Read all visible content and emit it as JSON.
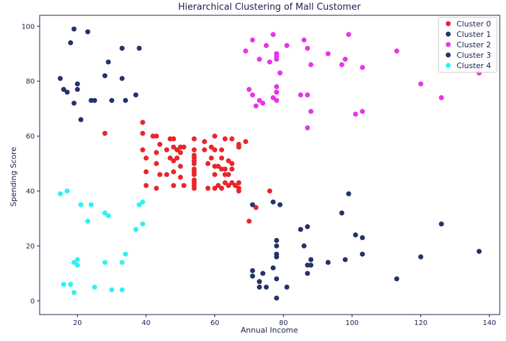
{
  "chart_data": {
    "type": "scatter",
    "title": "Hierarchical Clustering of Mall Customer",
    "xlabel": "Annual Income",
    "ylabel": "Spending Score",
    "xlim": [
      9,
      143
    ],
    "ylim": [
      -5,
      104
    ],
    "xticks": [
      20,
      40,
      60,
      80,
      100,
      120,
      140
    ],
    "yticks": [
      0,
      20,
      40,
      60,
      80,
      100
    ],
    "grid": false,
    "legend_position": "top-right",
    "series": [
      {
        "name": "Cluster 0",
        "color": "#e8262b",
        "points": [
          [
            28,
            61
          ],
          [
            39,
            65
          ],
          [
            39,
            61
          ],
          [
            39,
            55
          ],
          [
            40,
            47
          ],
          [
            40,
            42
          ],
          [
            40,
            52
          ],
          [
            42,
            60
          ],
          [
            43,
            60
          ],
          [
            43,
            54
          ],
          [
            43,
            41
          ],
          [
            43,
            50
          ],
          [
            44,
            46
          ],
          [
            44,
            57
          ],
          [
            46,
            46
          ],
          [
            46,
            55
          ],
          [
            47,
            52
          ],
          [
            47,
            59
          ],
          [
            48,
            47
          ],
          [
            48,
            51
          ],
          [
            48,
            56
          ],
          [
            48,
            59
          ],
          [
            48,
            42
          ],
          [
            49,
            55
          ],
          [
            49,
            52
          ],
          [
            50,
            45
          ],
          [
            50,
            54
          ],
          [
            50,
            56
          ],
          [
            50,
            49
          ],
          [
            51,
            42
          ],
          [
            51,
            56
          ],
          [
            54,
            55
          ],
          [
            54,
            53
          ],
          [
            54,
            52
          ],
          [
            54,
            51
          ],
          [
            54,
            50
          ],
          [
            54,
            48
          ],
          [
            54,
            47
          ],
          [
            54,
            46
          ],
          [
            54,
            44
          ],
          [
            54,
            43
          ],
          [
            54,
            42
          ],
          [
            54,
            41
          ],
          [
            54,
            59
          ],
          [
            57,
            58
          ],
          [
            57,
            55
          ],
          [
            58,
            50
          ],
          [
            58,
            41
          ],
          [
            59,
            52
          ],
          [
            59,
            56
          ],
          [
            60,
            60
          ],
          [
            60,
            46
          ],
          [
            60,
            49
          ],
          [
            60,
            55
          ],
          [
            60,
            41
          ],
          [
            61,
            42
          ],
          [
            61,
            49
          ],
          [
            62,
            48
          ],
          [
            62,
            52
          ],
          [
            62,
            55
          ],
          [
            62,
            41
          ],
          [
            63,
            46
          ],
          [
            63,
            59
          ],
          [
            63,
            43
          ],
          [
            63,
            48
          ],
          [
            64,
            42
          ],
          [
            64,
            46
          ],
          [
            64,
            51
          ],
          [
            65,
            48
          ],
          [
            65,
            50
          ],
          [
            65,
            59
          ],
          [
            65,
            43
          ],
          [
            66,
            42
          ],
          [
            67,
            56
          ],
          [
            67,
            43
          ],
          [
            67,
            57
          ],
          [
            67,
            40
          ],
          [
            67,
            41
          ],
          [
            69,
            58
          ],
          [
            70,
            29
          ],
          [
            72,
            34
          ],
          [
            76,
            40
          ]
        ]
      },
      {
        "name": "Cluster 1",
        "color": "#23336b",
        "points": [
          [
            71,
            35
          ],
          [
            71,
            11
          ],
          [
            71,
            9
          ],
          [
            73,
            5
          ],
          [
            73,
            7
          ],
          [
            74,
            10
          ],
          [
            75,
            5
          ],
          [
            77,
            12
          ],
          [
            77,
            36
          ],
          [
            78,
            22
          ],
          [
            78,
            17
          ],
          [
            78,
            20
          ],
          [
            78,
            16
          ],
          [
            78,
            1
          ],
          [
            78,
            8
          ],
          [
            79,
            35
          ],
          [
            81,
            5
          ],
          [
            85,
            26
          ],
          [
            86,
            20
          ],
          [
            87,
            27
          ],
          [
            87,
            13
          ],
          [
            87,
            10
          ],
          [
            88,
            13
          ],
          [
            88,
            15
          ],
          [
            93,
            14
          ],
          [
            97,
            32
          ],
          [
            98,
            15
          ],
          [
            99,
            39
          ],
          [
            101,
            24
          ],
          [
            103,
            17
          ],
          [
            103,
            23
          ],
          [
            113,
            8
          ],
          [
            120,
            16
          ],
          [
            126,
            28
          ],
          [
            137,
            18
          ]
        ]
      },
      {
        "name": "Cluster 2",
        "color": "#e834e8",
        "points": [
          [
            69,
            91
          ],
          [
            70,
            77
          ],
          [
            71,
            95
          ],
          [
            71,
            75
          ],
          [
            72,
            71
          ],
          [
            73,
            88
          ],
          [
            73,
            73
          ],
          [
            74,
            72
          ],
          [
            75,
            93
          ],
          [
            76,
            87
          ],
          [
            77,
            97
          ],
          [
            77,
            74
          ],
          [
            78,
            90
          ],
          [
            78,
            88
          ],
          [
            78,
            76
          ],
          [
            78,
            89
          ],
          [
            78,
            78
          ],
          [
            78,
            73
          ],
          [
            78,
            76
          ],
          [
            78,
            90
          ],
          [
            79,
            83
          ],
          [
            81,
            93
          ],
          [
            85,
            75
          ],
          [
            86,
            95
          ],
          [
            87,
            63
          ],
          [
            87,
            75
          ],
          [
            87,
            92
          ],
          [
            88,
            86
          ],
          [
            88,
            69
          ],
          [
            93,
            90
          ],
          [
            97,
            86
          ],
          [
            98,
            88
          ],
          [
            99,
            97
          ],
          [
            101,
            68
          ],
          [
            103,
            85
          ],
          [
            103,
            69
          ],
          [
            113,
            91
          ],
          [
            120,
            79
          ],
          [
            126,
            74
          ],
          [
            137,
            83
          ]
        ]
      },
      {
        "name": "Cluster 3",
        "color": "#23336b",
        "points": [
          [
            15,
            81
          ],
          [
            16,
            77
          ],
          [
            17,
            76
          ],
          [
            18,
            94
          ],
          [
            19,
            72
          ],
          [
            19,
            99
          ],
          [
            20,
            77
          ],
          [
            20,
            79
          ],
          [
            21,
            66
          ],
          [
            23,
            98
          ],
          [
            24,
            73
          ],
          [
            25,
            73
          ],
          [
            28,
            82
          ],
          [
            29,
            87
          ],
          [
            30,
            73
          ],
          [
            33,
            92
          ],
          [
            33,
            81
          ],
          [
            34,
            73
          ],
          [
            37,
            75
          ],
          [
            38,
            92
          ]
        ]
      },
      {
        "name": "Cluster 4",
        "color": "#2ef2f2",
        "points": [
          [
            15,
            39
          ],
          [
            16,
            6
          ],
          [
            17,
            40
          ],
          [
            18,
            6
          ],
          [
            19,
            3
          ],
          [
            19,
            14
          ],
          [
            20,
            15
          ],
          [
            20,
            13
          ],
          [
            21,
            35
          ],
          [
            23,
            29
          ],
          [
            24,
            35
          ],
          [
            25,
            5
          ],
          [
            28,
            14
          ],
          [
            28,
            32
          ],
          [
            29,
            31
          ],
          [
            30,
            4
          ],
          [
            33,
            4
          ],
          [
            33,
            14
          ],
          [
            34,
            17
          ],
          [
            37,
            26
          ],
          [
            38,
            35
          ],
          [
            39,
            36
          ],
          [
            39,
            28
          ]
        ]
      }
    ]
  }
}
